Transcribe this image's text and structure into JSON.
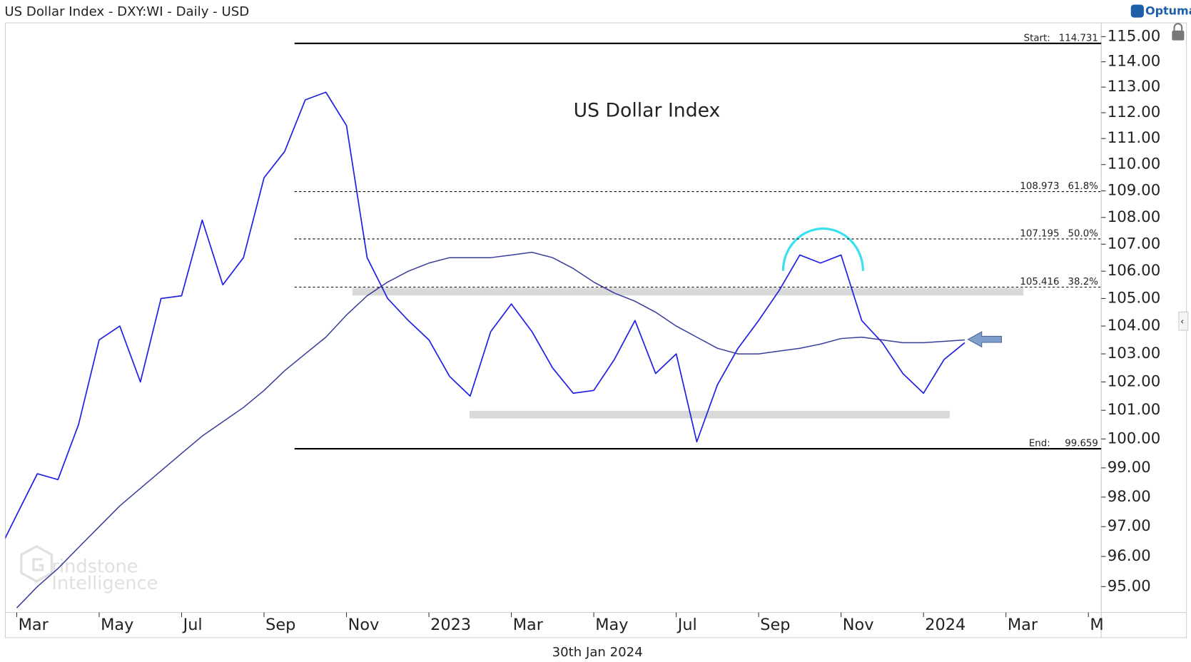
{
  "header": {
    "title": "US Dollar Index - DXY:WI - Daily - USD",
    "brand": "Optuma",
    "date": "30th Jan 2024"
  },
  "watermark": [
    "rindstone",
    "Intelligence"
  ],
  "chart_data": {
    "type": "line",
    "title": "US Dollar Index",
    "log_scale": true,
    "categories": [
      null,
      "Mar",
      null,
      null,
      null,
      "May",
      null,
      null,
      null,
      "Jul",
      null,
      null,
      null,
      "Sep",
      null,
      null,
      null,
      "Nov",
      null,
      null,
      null,
      "2023",
      null,
      null,
      null,
      "Mar",
      null,
      null,
      null,
      "May",
      null,
      null,
      null,
      "Jul",
      null,
      null,
      null,
      "Sep",
      null,
      null,
      null,
      "Nov",
      null,
      null,
      null,
      "2024",
      null,
      null,
      null,
      "Mar",
      null,
      null,
      null,
      "M"
    ],
    "series": [
      {
        "color": "#1f1fe6",
        "values": [
          96.0,
          97.4,
          98.8,
          98.6,
          100.5,
          103.5,
          104.0,
          102.0,
          105.0,
          105.1,
          107.9,
          105.5,
          106.5,
          109.5,
          110.5,
          112.5,
          112.8,
          111.5,
          106.5,
          105.0,
          104.2,
          103.5,
          102.2,
          101.5,
          103.8,
          104.8,
          103.8,
          102.5,
          101.6,
          101.7,
          102.8,
          104.2,
          102.3,
          103.0,
          99.9,
          101.9,
          103.2,
          104.2,
          105.3,
          106.6,
          106.3,
          106.6,
          104.2,
          103.4,
          102.3,
          101.6,
          102.8,
          103.4,
          null,
          null,
          null,
          null,
          null,
          null
        ]
      },
      {
        "color": "#363d9a",
        "values": [
          null,
          94.3,
          95.0,
          95.6,
          96.3,
          97.0,
          97.7,
          98.3,
          98.9,
          99.5,
          100.1,
          100.6,
          101.1,
          101.7,
          102.4,
          103.0,
          103.6,
          104.4,
          105.1,
          105.6,
          106.0,
          106.3,
          106.5,
          106.5,
          106.5,
          106.6,
          106.7,
          106.5,
          106.1,
          105.6,
          105.2,
          104.9,
          104.5,
          104.0,
          103.6,
          103.2,
          103.0,
          103.0,
          103.1,
          103.2,
          103.35,
          103.55,
          103.6,
          103.5,
          103.4,
          103.4,
          103.45,
          103.5,
          null,
          null,
          null,
          null,
          null,
          null
        ]
      }
    ],
    "ylim": [
      94.15,
      115.55
    ],
    "yticks": [
      {
        "value": 95,
        "label": "95.00"
      },
      {
        "value": 96,
        "label": "96.00"
      },
      {
        "value": 97,
        "label": "97.00"
      },
      {
        "value": 98,
        "label": "98.00"
      },
      {
        "value": 99,
        "label": "99.00"
      },
      {
        "value": 100,
        "label": "100.00"
      },
      {
        "value": 101,
        "label": "101.00"
      },
      {
        "value": 102,
        "label": "102.00"
      },
      {
        "value": 103,
        "label": "103.00"
      },
      {
        "value": 104,
        "label": "104.00"
      },
      {
        "value": 105,
        "label": "105.00"
      },
      {
        "value": 106,
        "label": "106.00"
      },
      {
        "value": 107,
        "label": "107.00"
      },
      {
        "value": 108,
        "label": "108.00"
      },
      {
        "value": 109,
        "label": "109.00"
      },
      {
        "value": 110,
        "label": "110.00"
      },
      {
        "value": 111,
        "label": "111.00"
      },
      {
        "value": 112,
        "label": "112.00"
      },
      {
        "value": 113,
        "label": "113.00"
      },
      {
        "value": 114,
        "label": "114.00"
      },
      {
        "value": 115,
        "label": "115.00"
      }
    ],
    "levels": [
      {
        "value": 114.731,
        "prefix": "Start:",
        "style": "solid"
      },
      {
        "value": 108.973,
        "suffix": "61.8%",
        "style": "dotted"
      },
      {
        "value": 107.195,
        "suffix": "50.0%",
        "style": "dotted"
      },
      {
        "value": 105.416,
        "suffix": "38.2%",
        "style": "dotted"
      },
      {
        "value": 99.659,
        "prefix": "End:",
        "style": "solid"
      }
    ],
    "zones": [
      {
        "value": 105.25
      },
      {
        "value": 100.85
      }
    ]
  }
}
